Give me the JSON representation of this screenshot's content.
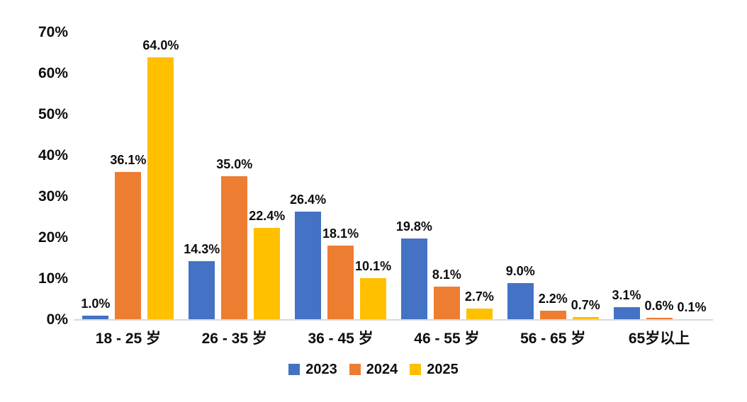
{
  "chart_data": {
    "type": "bar",
    "title": "",
    "categories": [
      "18 - 25 岁",
      "26 - 35 岁",
      "36 - 45 岁",
      "46 - 55 岁",
      "56 - 65 岁",
      "65岁以上"
    ],
    "series": [
      {
        "name": "2023",
        "color": "#4472C4",
        "values": [
          1.0,
          14.3,
          26.4,
          19.8,
          9.0,
          3.1
        ]
      },
      {
        "name": "2024",
        "color": "#ED7D31",
        "values": [
          36.1,
          35.0,
          18.1,
          8.1,
          2.2,
          0.6
        ]
      },
      {
        "name": "2025",
        "color": "#FFC000",
        "values": [
          64.0,
          22.4,
          10.1,
          2.7,
          0.7,
          0.1
        ]
      }
    ],
    "data_labels": {
      "2023": [
        "1.0%",
        "14.3%",
        "26.4%",
        "19.8%",
        "9.0%",
        "3.1%"
      ],
      "2024": [
        "36.1%",
        "35.0%",
        "18.1%",
        "8.1%",
        "2.2%",
        "0.6%"
      ],
      "2025": [
        "64.0%",
        "22.4%",
        "10.1%",
        "2.7%",
        "0.7%",
        "0.1%"
      ]
    },
    "xlabel": "",
    "ylabel": "",
    "y_ticks": [
      "70%",
      "60%",
      "50%",
      "40%",
      "30%",
      "20%",
      "10%",
      "0%"
    ],
    "ylim": [
      0,
      70
    ],
    "grid": false,
    "legend_position": "bottom",
    "legend_entries": [
      "2023",
      "2024",
      "2025"
    ],
    "axis_line_color": "#D9D9D9",
    "text_color": "#0D0D0D",
    "background_color": "#FFFFFF"
  }
}
